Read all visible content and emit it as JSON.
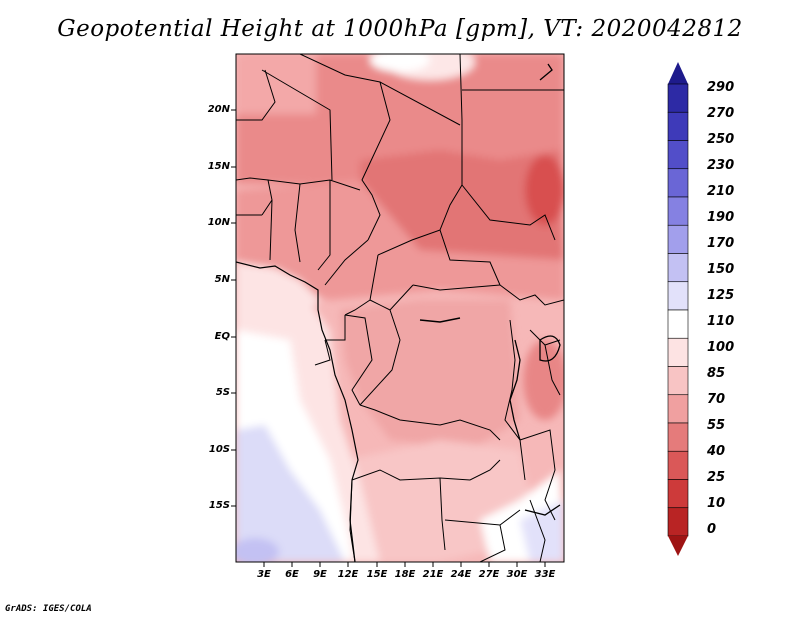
{
  "title": "Geopotential Height at 1000hPa [gpm], VT: 2020042812",
  "footer": "GrADS: IGES/COLA",
  "map": {
    "lon_range": [
      0,
      35
    ],
    "lat_range": [
      -20,
      25
    ],
    "lat_ticks": [
      "20N",
      "15N",
      "10N",
      "5N",
      "EQ",
      "5S",
      "10S",
      "15S"
    ],
    "lon_ticks": [
      "3E",
      "6E",
      "9E",
      "12E",
      "15E",
      "18E",
      "21E",
      "24E",
      "27E",
      "30E",
      "33E"
    ]
  },
  "colorbar": {
    "levels": [
      "290",
      "270",
      "250",
      "230",
      "210",
      "190",
      "170",
      "150",
      "125",
      "110",
      "100",
      "85",
      "70",
      "55",
      "40",
      "25",
      "10",
      "0"
    ],
    "colors": [
      "#1e1b8c",
      "#2d2aa5",
      "#3e3ab9",
      "#524ec9",
      "#6a66d6",
      "#8581e2",
      "#a29fec",
      "#c3c1f3",
      "#e2e1fa",
      "#ffffff",
      "#fde3e3",
      "#f8c4c4",
      "#f0a0a0",
      "#e57b7b",
      "#da5858",
      "#cd3a3a",
      "#b92424",
      "#9e1414"
    ]
  }
}
